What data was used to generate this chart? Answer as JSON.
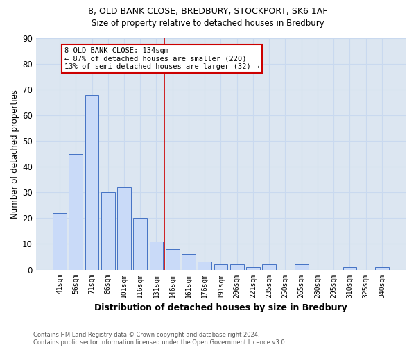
{
  "title1": "8, OLD BANK CLOSE, BREDBURY, STOCKPORT, SK6 1AF",
  "title2": "Size of property relative to detached houses in Bredbury",
  "xlabel": "Distribution of detached houses by size in Bredbury",
  "ylabel": "Number of detached properties",
  "categories": [
    "41sqm",
    "56sqm",
    "71sqm",
    "86sqm",
    "101sqm",
    "116sqm",
    "131sqm",
    "146sqm",
    "161sqm",
    "176sqm",
    "191sqm",
    "206sqm",
    "221sqm",
    "235sqm",
    "250sqm",
    "265sqm",
    "280sqm",
    "295sqm",
    "310sqm",
    "325sqm",
    "340sqm"
  ],
  "values": [
    22,
    45,
    68,
    30,
    32,
    20,
    11,
    8,
    6,
    3,
    2,
    2,
    1,
    2,
    0,
    2,
    0,
    0,
    1,
    0,
    1
  ],
  "bar_color": "#c9daf8",
  "bar_edge_color": "#4472c4",
  "vline_x": 6.5,
  "vline_color": "#cc0000",
  "annotation_text": "8 OLD BANK CLOSE: 134sqm\n← 87% of detached houses are smaller (220)\n13% of semi-detached houses are larger (32) →",
  "annotation_box_color": "#ffffff",
  "annotation_box_edge": "#cc0000",
  "ylim": [
    0,
    90
  ],
  "yticks": [
    0,
    10,
    20,
    30,
    40,
    50,
    60,
    70,
    80,
    90
  ],
  "grid_color": "#c9d9ef",
  "background_color": "#dce6f1",
  "footer": "Contains HM Land Registry data © Crown copyright and database right 2024.\nContains public sector information licensed under the Open Government Licence v3.0."
}
